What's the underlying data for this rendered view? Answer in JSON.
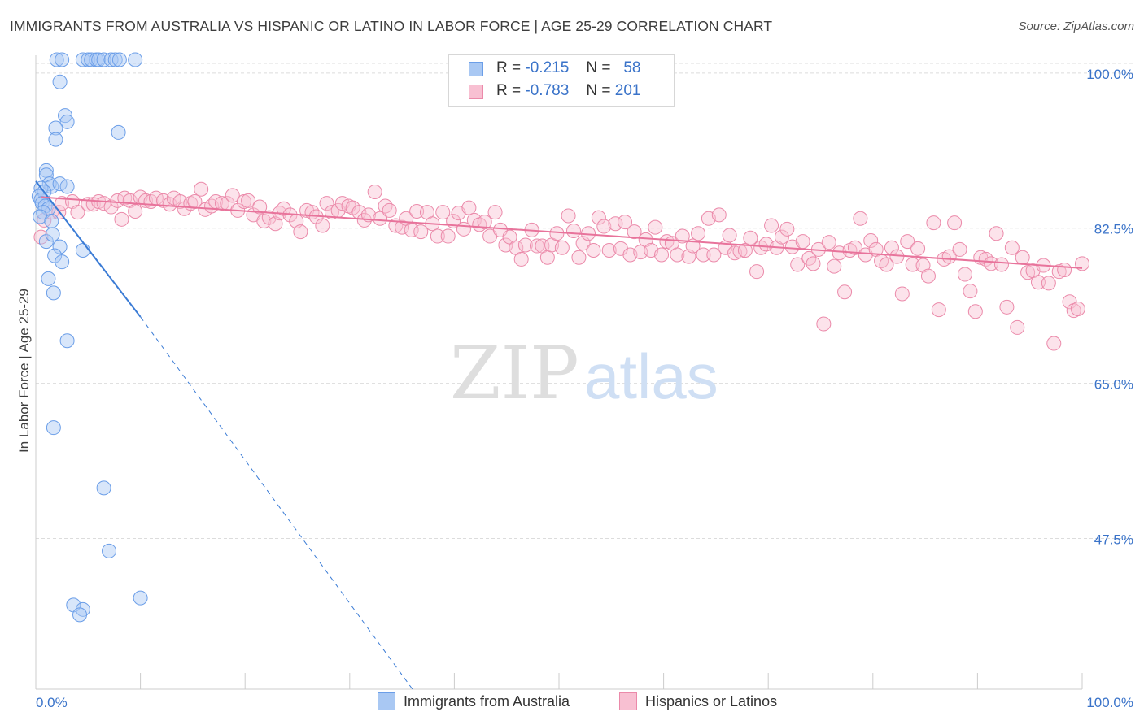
{
  "title": "IMMIGRANTS FROM AUSTRALIA VS HISPANIC OR LATINO IN LABOR FORCE | AGE 25-29 CORRELATION CHART",
  "source": "Source: ZipAtlas.com",
  "watermark": {
    "zip": "ZIP",
    "atlas": "atlas"
  },
  "legend": {
    "rows": [
      {
        "r_label": "R =",
        "r_value": "-0.215",
        "n_label": "N =",
        "n_value": "58",
        "color": "#a9c8f3",
        "border": "#6b9ee8"
      },
      {
        "r_label": "R =",
        "r_value": "-0.783",
        "n_label": "N =",
        "n_value": "201",
        "color": "#f8c0d2",
        "border": "#eb8aaa"
      }
    ]
  },
  "bottom_legend": [
    {
      "label": "Immigrants from Australia",
      "color": "#a9c8f3",
      "border": "#6b9ee8"
    },
    {
      "label": "Hispanics or Latinos",
      "color": "#f8c0d2",
      "border": "#eb8aaa"
    }
  ],
  "colors": {
    "blue": "#3a7bd5",
    "pink": "#e8739b",
    "axis_text": "#3a73c9",
    "grid": "#dcdcdc"
  },
  "chart_data": {
    "type": "scatter",
    "title": "IMMIGRANTS FROM AUSTRALIA VS HISPANIC OR LATINO IN LABOR FORCE | AGE 25-29 CORRELATION CHART",
    "xlabel": "",
    "ylabel": "In Labor Force | Age 25-29",
    "xlim": [
      0,
      100
    ],
    "ylim": [
      30.5,
      102
    ],
    "x_tick_labels": [
      "0.0%",
      "100.0%"
    ],
    "y_ticks": [
      100.0,
      82.5,
      65.0,
      47.5
    ],
    "y_tick_labels": [
      "100.0%",
      "82.5%",
      "65.0%",
      "47.5%"
    ],
    "grid": true,
    "legend_position": "top-center",
    "series": [
      {
        "name": "Immigrants from Australia",
        "r": -0.215,
        "n": 58,
        "trend": {
          "x": [
            0,
            10
          ],
          "y": [
            87.8,
            72.5
          ],
          "extended_to": [
            36,
            30.5
          ]
        },
        "points": [
          [
            2.0,
            101.5
          ],
          [
            2.5,
            101.5
          ],
          [
            4.5,
            101.5
          ],
          [
            5.0,
            101.5
          ],
          [
            5.3,
            101.5
          ],
          [
            5.8,
            101.5
          ],
          [
            6.0,
            101.5
          ],
          [
            6.5,
            101.5
          ],
          [
            7.2,
            101.5
          ],
          [
            7.6,
            101.5
          ],
          [
            8.0,
            101.5
          ],
          [
            9.5,
            101.5
          ],
          [
            2.3,
            99.0
          ],
          [
            2.8,
            95.2
          ],
          [
            3.0,
            94.5
          ],
          [
            1.9,
            93.8
          ],
          [
            1.9,
            92.5
          ],
          [
            7.9,
            93.3
          ],
          [
            1.0,
            89.0
          ],
          [
            1.0,
            88.5
          ],
          [
            1.3,
            87.5
          ],
          [
            1.5,
            87.2
          ],
          [
            2.3,
            87.5
          ],
          [
            3.0,
            87.2
          ],
          [
            0.5,
            87.0
          ],
          [
            0.8,
            86.6
          ],
          [
            0.3,
            86.1
          ],
          [
            0.5,
            85.7
          ],
          [
            0.6,
            85.3
          ],
          [
            0.9,
            85.0
          ],
          [
            1.2,
            84.7
          ],
          [
            0.7,
            84.3
          ],
          [
            0.4,
            83.8
          ],
          [
            1.5,
            83.3
          ],
          [
            1.0,
            81.0
          ],
          [
            1.6,
            81.8
          ],
          [
            2.3,
            80.4
          ],
          [
            1.8,
            79.4
          ],
          [
            4.5,
            80.0
          ],
          [
            2.5,
            78.7
          ],
          [
            1.2,
            76.8
          ],
          [
            1.7,
            75.2
          ],
          [
            3.0,
            69.8
          ],
          [
            1.7,
            60.0
          ],
          [
            6.5,
            53.2
          ],
          [
            7.0,
            46.1
          ],
          [
            3.6,
            40.0
          ],
          [
            4.5,
            39.5
          ],
          [
            4.2,
            38.9
          ],
          [
            10.0,
            40.8
          ]
        ]
      },
      {
        "name": "Hispanics or Latinos",
        "r": -0.783,
        "n": 201,
        "trend": {
          "x": [
            0.5,
            100
          ],
          "y": [
            86.0,
            78.0
          ]
        },
        "points": [
          [
            0.5,
            81.5
          ],
          [
            0.8,
            83.4
          ],
          [
            1.5,
            84.3
          ],
          [
            2.2,
            84.3
          ],
          [
            2.5,
            85.3
          ],
          [
            3.5,
            85.5
          ],
          [
            4.0,
            84.3
          ],
          [
            5.0,
            85.2
          ],
          [
            5.5,
            85.2
          ],
          [
            6.0,
            85.5
          ],
          [
            6.5,
            85.3
          ],
          [
            7.2,
            84.9
          ],
          [
            7.8,
            85.6
          ],
          [
            8.2,
            83.5
          ],
          [
            8.5,
            85.9
          ],
          [
            9.0,
            85.6
          ],
          [
            9.5,
            84.4
          ],
          [
            10.0,
            86.0
          ],
          [
            10.5,
            85.6
          ],
          [
            11.0,
            85.5
          ],
          [
            11.5,
            85.9
          ],
          [
            12.2,
            85.6
          ],
          [
            12.8,
            85.2
          ],
          [
            13.2,
            85.9
          ],
          [
            13.8,
            85.5
          ],
          [
            14.2,
            84.7
          ],
          [
            14.8,
            85.3
          ],
          [
            15.2,
            85.5
          ],
          [
            15.8,
            86.9
          ],
          [
            16.2,
            84.6
          ],
          [
            16.8,
            85.0
          ],
          [
            17.2,
            85.5
          ],
          [
            17.8,
            85.3
          ],
          [
            18.3,
            85.3
          ],
          [
            18.8,
            86.2
          ],
          [
            19.3,
            84.5
          ],
          [
            19.9,
            85.5
          ],
          [
            20.3,
            85.6
          ],
          [
            20.8,
            84.0
          ],
          [
            21.4,
            84.9
          ],
          [
            21.8,
            83.3
          ],
          [
            22.3,
            83.7
          ],
          [
            22.9,
            83.0
          ],
          [
            23.3,
            84.2
          ],
          [
            23.7,
            84.7
          ],
          [
            24.3,
            84.0
          ],
          [
            24.9,
            83.3
          ],
          [
            25.3,
            82.1
          ],
          [
            25.9,
            84.5
          ],
          [
            26.4,
            84.3
          ],
          [
            26.8,
            83.8
          ],
          [
            27.4,
            82.8
          ],
          [
            27.8,
            85.3
          ],
          [
            28.3,
            84.3
          ],
          [
            28.9,
            84.5
          ],
          [
            29.3,
            85.3
          ],
          [
            29.9,
            85.0
          ],
          [
            30.3,
            84.8
          ],
          [
            30.9,
            84.3
          ],
          [
            31.4,
            83.4
          ],
          [
            31.8,
            84.0
          ],
          [
            32.4,
            86.6
          ],
          [
            32.9,
            83.6
          ],
          [
            33.4,
            85.0
          ],
          [
            33.8,
            84.5
          ],
          [
            34.4,
            82.8
          ],
          [
            35.0,
            82.6
          ],
          [
            35.4,
            83.6
          ],
          [
            35.9,
            82.3
          ],
          [
            36.4,
            84.4
          ],
          [
            36.8,
            82.1
          ],
          [
            37.4,
            84.3
          ],
          [
            37.9,
            83.0
          ],
          [
            38.4,
            81.6
          ],
          [
            38.9,
            84.3
          ],
          [
            39.4,
            81.6
          ],
          [
            39.9,
            83.3
          ],
          [
            40.4,
            84.2
          ],
          [
            40.9,
            82.4
          ],
          [
            41.4,
            84.8
          ],
          [
            41.9,
            83.4
          ],
          [
            42.4,
            82.9
          ],
          [
            42.9,
            83.2
          ],
          [
            43.4,
            81.6
          ],
          [
            43.9,
            84.3
          ],
          [
            44.4,
            82.3
          ],
          [
            44.9,
            80.6
          ],
          [
            45.3,
            81.5
          ],
          [
            45.9,
            80.3
          ],
          [
            46.4,
            79.0
          ],
          [
            46.8,
            80.6
          ],
          [
            47.4,
            82.3
          ],
          [
            47.9,
            80.5
          ],
          [
            48.4,
            80.5
          ],
          [
            48.9,
            79.2
          ],
          [
            49.3,
            80.6
          ],
          [
            49.8,
            81.9
          ],
          [
            50.3,
            80.3
          ],
          [
            50.9,
            83.9
          ],
          [
            51.4,
            82.2
          ],
          [
            51.9,
            79.2
          ],
          [
            52.3,
            80.8
          ],
          [
            52.8,
            81.9
          ],
          [
            53.3,
            80.0
          ],
          [
            53.8,
            83.7
          ],
          [
            54.3,
            82.7
          ],
          [
            54.8,
            80.0
          ],
          [
            55.4,
            83.0
          ],
          [
            55.9,
            80.2
          ],
          [
            56.3,
            83.2
          ],
          [
            56.8,
            79.5
          ],
          [
            57.2,
            82.1
          ],
          [
            57.8,
            79.8
          ],
          [
            58.3,
            81.2
          ],
          [
            58.8,
            80.0
          ],
          [
            59.2,
            82.6
          ],
          [
            59.8,
            79.5
          ],
          [
            60.3,
            81.0
          ],
          [
            60.8,
            80.8
          ],
          [
            61.3,
            79.5
          ],
          [
            61.8,
            81.6
          ],
          [
            62.4,
            79.3
          ],
          [
            62.8,
            80.5
          ],
          [
            63.3,
            81.9
          ],
          [
            63.8,
            79.5
          ],
          [
            64.3,
            83.6
          ],
          [
            64.8,
            79.5
          ],
          [
            65.3,
            84.0
          ],
          [
            65.9,
            80.3
          ],
          [
            66.3,
            81.7
          ],
          [
            66.8,
            79.7
          ],
          [
            67.3,
            79.9
          ],
          [
            67.8,
            80.0
          ],
          [
            68.3,
            81.4
          ],
          [
            68.9,
            77.6
          ],
          [
            69.3,
            80.3
          ],
          [
            69.8,
            80.7
          ],
          [
            70.3,
            82.8
          ],
          [
            70.8,
            80.3
          ],
          [
            71.3,
            81.5
          ],
          [
            71.8,
            82.4
          ],
          [
            72.3,
            80.4
          ],
          [
            72.8,
            78.4
          ],
          [
            73.3,
            81.0
          ],
          [
            73.9,
            79.1
          ],
          [
            74.3,
            78.5
          ],
          [
            74.8,
            80.1
          ],
          [
            75.3,
            71.7
          ],
          [
            75.8,
            80.9
          ],
          [
            76.3,
            78.2
          ],
          [
            76.8,
            79.7
          ],
          [
            77.3,
            75.3
          ],
          [
            77.8,
            80.0
          ],
          [
            78.3,
            80.3
          ],
          [
            78.8,
            83.6
          ],
          [
            79.3,
            79.5
          ],
          [
            79.8,
            81.1
          ],
          [
            80.3,
            80.1
          ],
          [
            80.8,
            78.8
          ],
          [
            81.3,
            78.4
          ],
          [
            81.8,
            80.3
          ],
          [
            82.3,
            79.3
          ],
          [
            82.8,
            75.1
          ],
          [
            83.3,
            81.0
          ],
          [
            83.8,
            78.4
          ],
          [
            84.3,
            80.2
          ],
          [
            84.8,
            78.3
          ],
          [
            85.3,
            77.1
          ],
          [
            85.8,
            83.1
          ],
          [
            86.3,
            73.3
          ],
          [
            86.8,
            79.0
          ],
          [
            87.3,
            79.3
          ],
          [
            87.8,
            83.1
          ],
          [
            88.3,
            80.1
          ],
          [
            88.8,
            77.3
          ],
          [
            89.3,
            75.4
          ],
          [
            89.8,
            73.1
          ],
          [
            90.3,
            79.2
          ],
          [
            90.8,
            79.0
          ],
          [
            91.3,
            78.5
          ],
          [
            91.8,
            81.9
          ],
          [
            92.3,
            78.4
          ],
          [
            92.8,
            73.6
          ],
          [
            93.3,
            80.3
          ],
          [
            93.8,
            71.3
          ],
          [
            94.3,
            79.2
          ],
          [
            94.8,
            77.5
          ],
          [
            95.3,
            77.7
          ],
          [
            95.8,
            76.4
          ],
          [
            96.3,
            78.3
          ],
          [
            96.8,
            76.3
          ],
          [
            97.3,
            69.5
          ],
          [
            97.8,
            77.6
          ],
          [
            98.3,
            77.8
          ],
          [
            98.8,
            74.2
          ],
          [
            99.2,
            73.2
          ],
          [
            99.6,
            73.4
          ],
          [
            100.0,
            78.5
          ]
        ]
      }
    ]
  }
}
